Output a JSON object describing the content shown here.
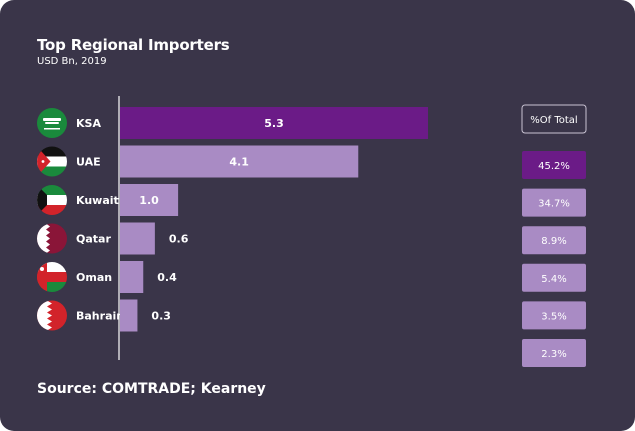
{
  "chart_data": {
    "type": "bar",
    "orientation": "horizontal",
    "title": "Top Regional Importers",
    "subtitle": "USD Bn, 2019",
    "categories": [
      "KSA",
      "UAE",
      "Kuwait",
      "Qatar",
      "Oman",
      "Bahrain"
    ],
    "values": [
      5.3,
      4.1,
      1.0,
      0.6,
      0.4,
      0.3
    ],
    "value_labels": [
      "5.3",
      "4.1",
      "1.0",
      "0.6",
      "0.4",
      "0.3"
    ],
    "xlim": [
      0,
      5.3
    ],
    "grid": false,
    "highlight_index": 0,
    "share_table": {
      "header": "%Of Total",
      "values": [
        "45.2%",
        "34.7%",
        "8.9%",
        "5.4%",
        "3.5%",
        "2.3%"
      ],
      "highlight_index": 0
    },
    "flags": [
      "saudi-arabia-flag-icon",
      "jordan-flag-icon",
      "kuwait-flag-icon",
      "qatar-flag-icon",
      "oman-flag-icon",
      "bahrain-flag-icon"
    ],
    "colors": {
      "background": "#3a3549",
      "highlight": "#6b1b87",
      "bar": "#a98bc4",
      "axis": "#ffffff"
    }
  },
  "source": "Source: COMTRADE; Kearney"
}
